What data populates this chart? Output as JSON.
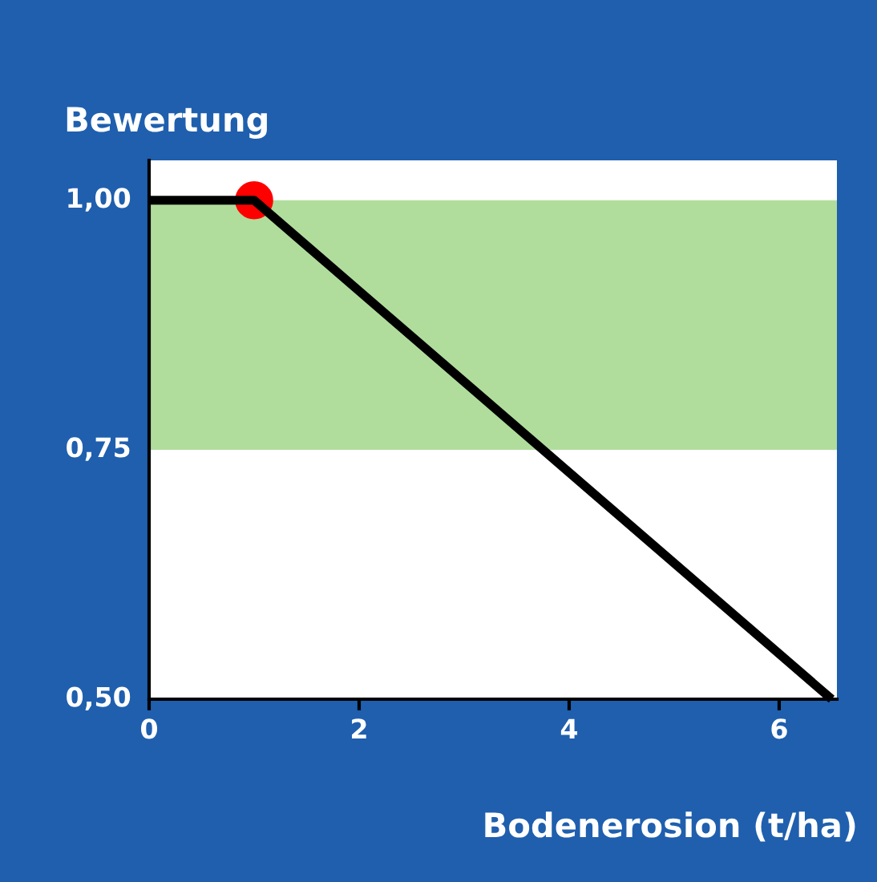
{
  "chart_data": {
    "type": "line",
    "xlabel": "Bodenerosion (t/ha)",
    "ylabel": "Bewertung",
    "xlim": [
      0,
      6.55
    ],
    "ylim": [
      0.5,
      1.04
    ],
    "xticks": [
      0,
      2,
      4,
      6
    ],
    "yticks": [
      {
        "value": 0.5,
        "label": "0,50"
      },
      {
        "value": 0.75,
        "label": "0,75"
      },
      {
        "value": 1.0,
        "label": "1,00"
      }
    ],
    "grid": false,
    "legend": false,
    "bands": [
      {
        "axis": "y",
        "from": 0.75,
        "to": 1.0,
        "color": "#b0dd9c"
      }
    ],
    "series": [
      {
        "type": "line",
        "color": "#000000",
        "x": [
          0,
          1,
          6.5
        ],
        "values": [
          1.0,
          1.0,
          0.5
        ],
        "marker": "none",
        "line_style": "solid"
      },
      {
        "type": "scatter",
        "color": "#ff0000",
        "x": [
          1
        ],
        "values": [
          1.0
        ],
        "marker": "circle"
      }
    ]
  }
}
